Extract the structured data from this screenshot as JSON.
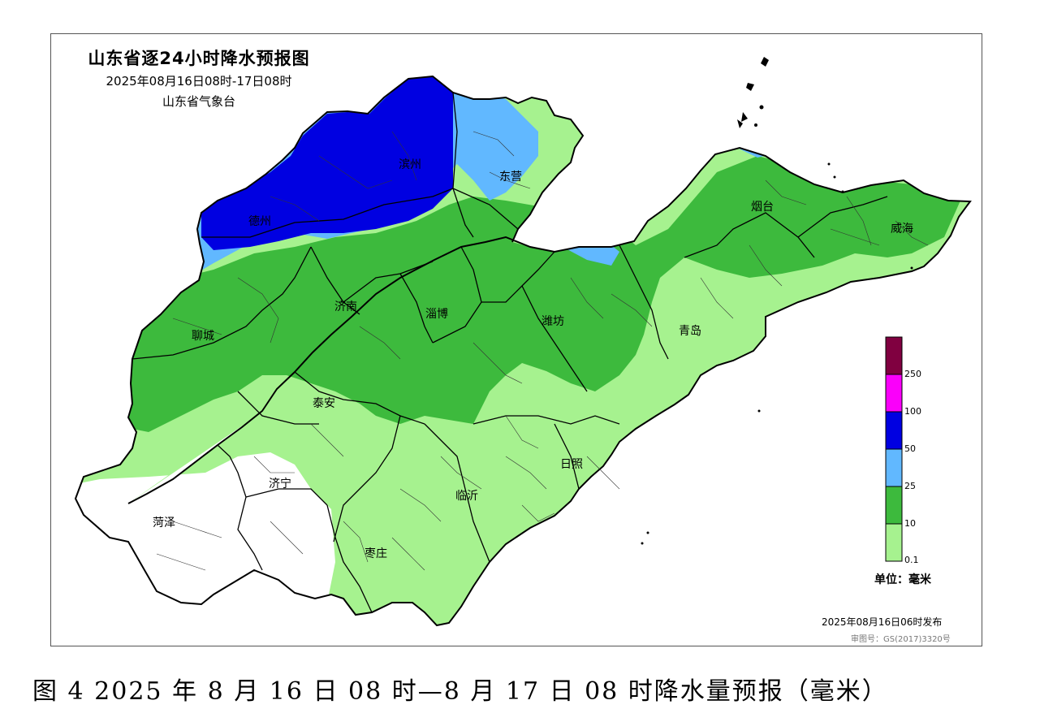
{
  "map": {
    "title": "山东省逐24小时降水预报图",
    "period": "2025年08月16日08时-17日08时",
    "issuer": "山东省气象台",
    "cities": [
      "德州",
      "滨州",
      "东营",
      "烟台",
      "威海",
      "聊城",
      "济南",
      "淄博",
      "潍坊",
      "青岛",
      "泰安",
      "济宁",
      "菏泽",
      "临沂",
      "日照",
      "枣庄"
    ],
    "legend": {
      "levels": [
        "0.1",
        "10",
        "25",
        "50",
        "100",
        "250"
      ],
      "colors": [
        "#a6f28f",
        "#3dba3d",
        "#61b8ff",
        "#0000e1",
        "#fa00fa",
        "#800040"
      ],
      "unit": "单位：毫米"
    },
    "issue_time": "2025年08月16日06时发布",
    "approval_no": "审图号：GS(2017)3320号"
  },
  "caption": "图 4 2025 年 8 月 16 日 08 时—8 月 17 日 08 时降水量预报（毫米）"
}
